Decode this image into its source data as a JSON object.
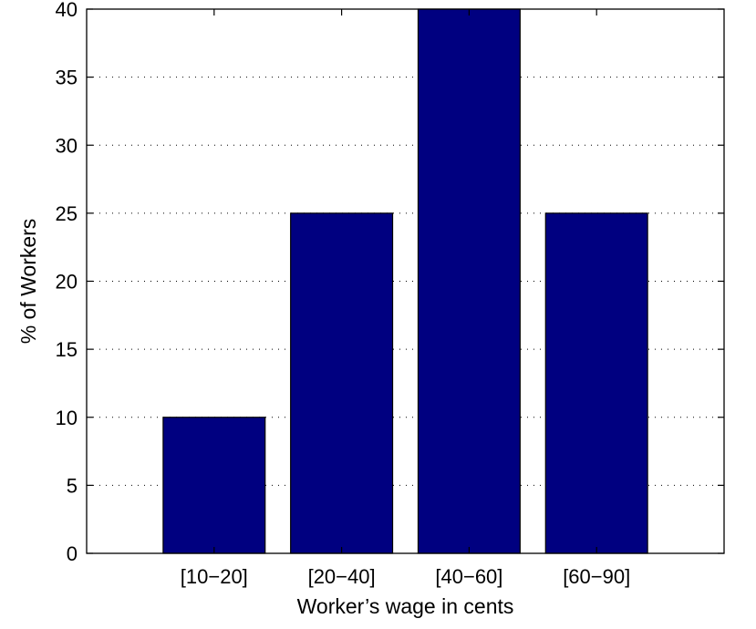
{
  "chart_data": {
    "type": "bar",
    "categories": [
      "[10−20]",
      "[20−40]",
      "[40−60]",
      "[60−90]"
    ],
    "values": [
      10,
      25,
      40,
      25
    ],
    "xlabel": "Worker’s wage in cents",
    "ylabel": "% of Workers",
    "ylim": [
      0,
      40
    ],
    "yticks": [
      0,
      5,
      10,
      15,
      20,
      25,
      30,
      35,
      40
    ],
    "grid": "y dotted",
    "bar_color": "#000080"
  }
}
